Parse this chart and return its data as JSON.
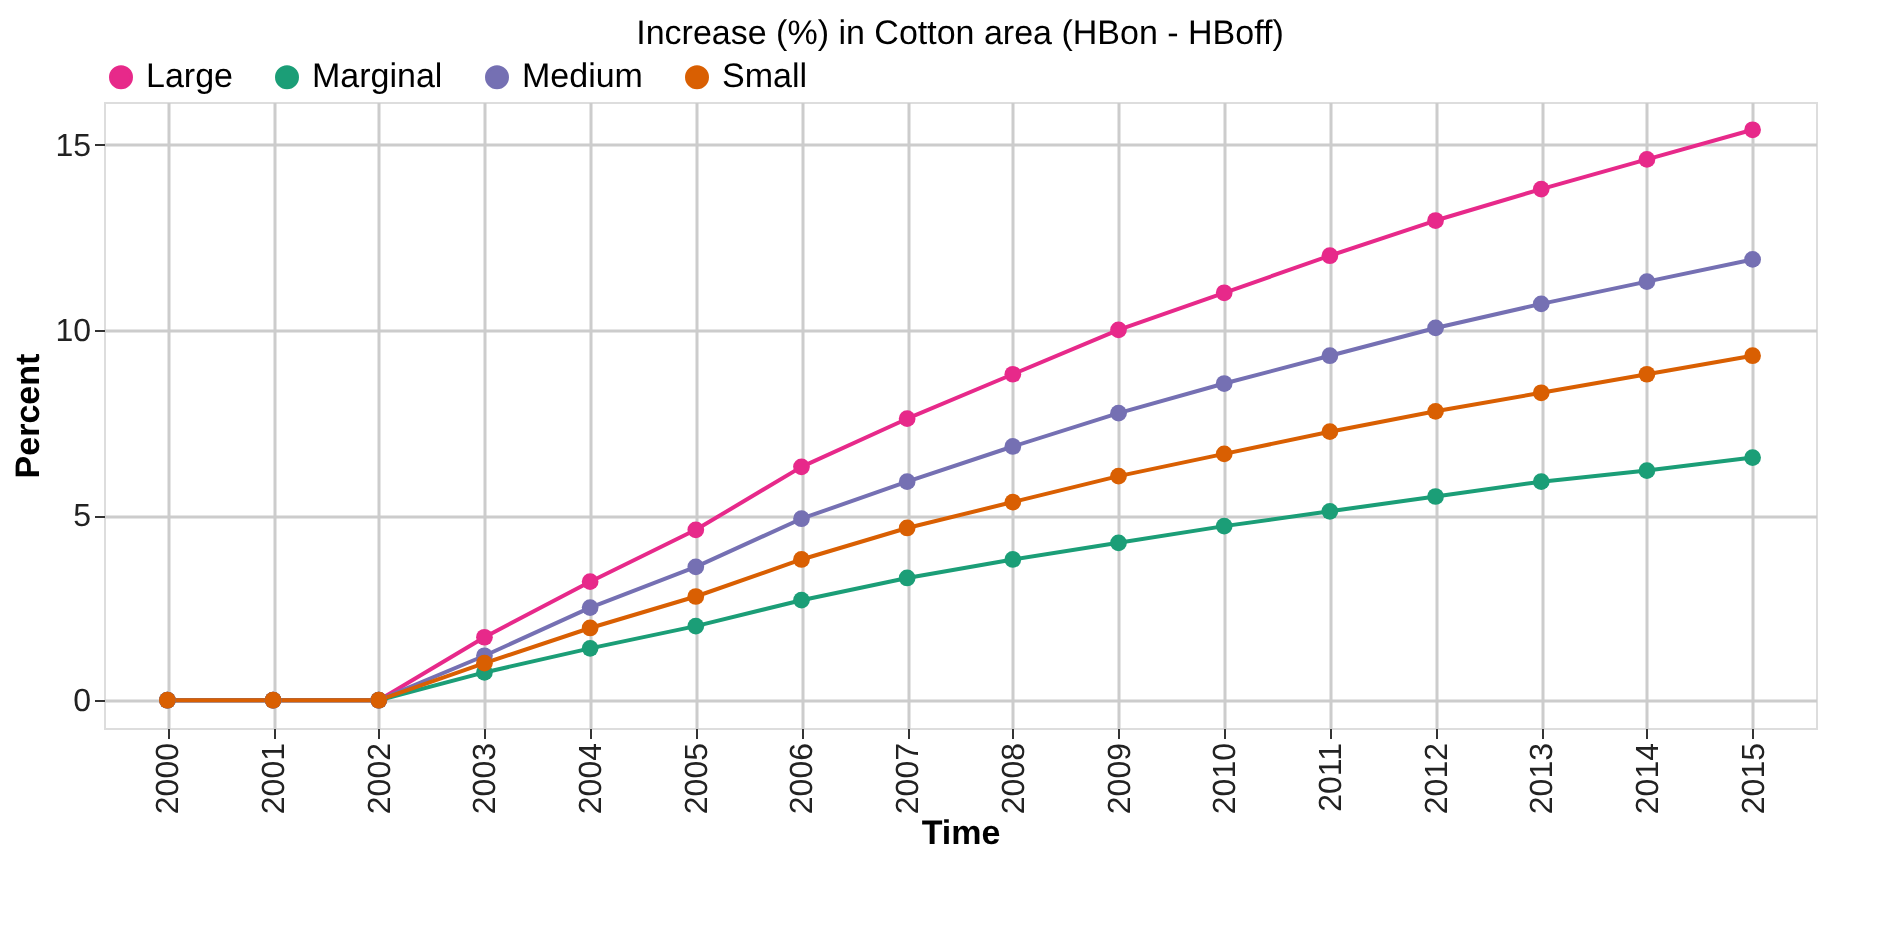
{
  "chart_data": {
    "type": "line",
    "title": "Increase (%) in Cotton area (HBon - HBoff)",
    "xlabel": "Time",
    "ylabel": "Percent",
    "categories": [
      "2000",
      "2001",
      "2002",
      "2003",
      "2004",
      "2005",
      "2006",
      "2007",
      "2008",
      "2009",
      "2010",
      "2011",
      "2012",
      "2013",
      "2014",
      "2015"
    ],
    "series": [
      {
        "name": "Large",
        "color": "#e7298a",
        "values": [
          0,
          0,
          0,
          1.7,
          3.2,
          4.6,
          6.3,
          7.6,
          8.8,
          10.0,
          11.0,
          12.0,
          12.95,
          13.8,
          14.6,
          15.4
        ]
      },
      {
        "name": "Marginal",
        "color": "#1b9e77",
        "values": [
          0,
          0,
          0,
          0.75,
          1.4,
          2.0,
          2.7,
          3.3,
          3.8,
          4.25,
          4.7,
          5.1,
          5.5,
          5.9,
          6.2,
          6.55
        ]
      },
      {
        "name": "Medium",
        "color": "#7570b3",
        "values": [
          0,
          0,
          0,
          1.2,
          2.5,
          3.6,
          4.9,
          5.9,
          6.85,
          7.75,
          8.55,
          9.3,
          10.05,
          10.7,
          11.3,
          11.9
        ]
      },
      {
        "name": "Small",
        "color": "#d95f02",
        "values": [
          0,
          0,
          0,
          1.0,
          1.95,
          2.8,
          3.8,
          4.65,
          5.35,
          6.05,
          6.65,
          7.25,
          7.8,
          8.3,
          8.8,
          9.3
        ]
      }
    ],
    "ylim": [
      -0.75,
      16.15
    ],
    "yticks": [
      0,
      5,
      10,
      15
    ],
    "grid": true,
    "legend": "top",
    "marker": "circle",
    "line_style": "solid"
  }
}
